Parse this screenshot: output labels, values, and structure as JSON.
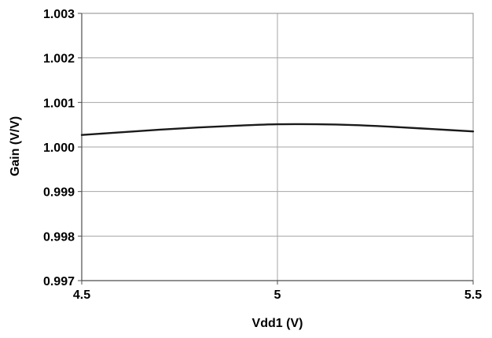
{
  "chart_data": {
    "type": "line",
    "title": "",
    "xlabel": "Vdd1 (V)",
    "ylabel": "Gain (V/V)",
    "xlim": [
      4.5,
      5.5
    ],
    "ylim": [
      0.997,
      1.003
    ],
    "x_ticks": [
      "4.5",
      "5",
      "5.5"
    ],
    "x_tick_values": [
      4.5,
      5.0,
      5.5
    ],
    "y_ticks": [
      "0.997",
      "0.998",
      "0.999",
      "1.000",
      "1.001",
      "1.002",
      "1.003"
    ],
    "y_tick_values": [
      0.997,
      0.998,
      0.999,
      1.0,
      1.001,
      1.002,
      1.003
    ],
    "grid": true,
    "legend": "none",
    "series": [
      {
        "color": "#1a1a1a",
        "x": [
          4.5,
          4.6,
          4.7,
          4.8,
          4.9,
          5.0,
          5.1,
          5.2,
          5.3,
          5.4,
          5.5
        ],
        "y": [
          1.00027,
          1.00033,
          1.00039,
          1.00044,
          1.00048,
          1.00051,
          1.00051,
          1.00049,
          1.00045,
          1.0004,
          1.00035
        ]
      }
    ]
  }
}
